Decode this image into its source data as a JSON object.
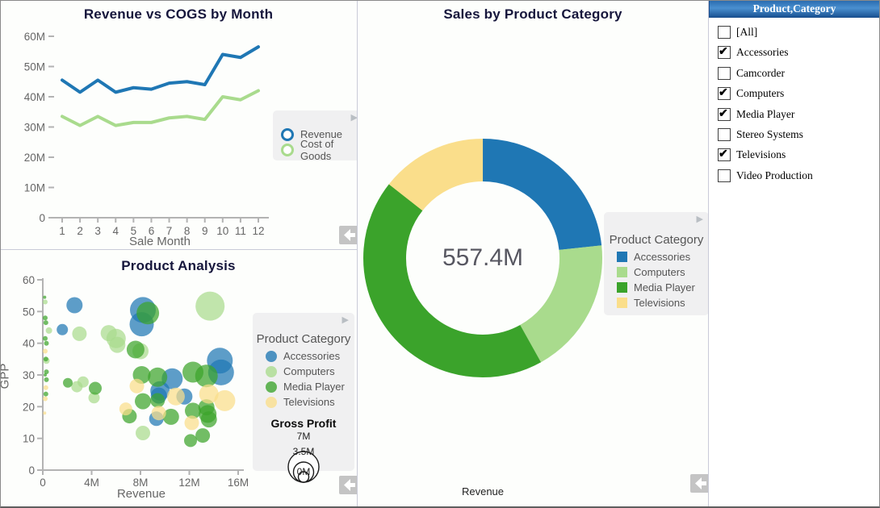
{
  "chart_data": [
    {
      "id": "revenue_vs_cogs",
      "type": "line",
      "title": "Revenue vs COGS by Month",
      "xlabel": "Sale Month",
      "ylabel": "",
      "x": [
        1,
        2,
        3,
        4,
        5,
        6,
        7,
        8,
        9,
        10,
        11,
        12
      ],
      "series": [
        {
          "name": "Revenue",
          "color": "#1F77B4",
          "values": [
            45.5,
            41.5,
            45.5,
            41.5,
            43,
            42.5,
            44.5,
            45,
            44,
            54,
            53,
            56.5
          ]
        },
        {
          "name": "Cost of Goods",
          "color": "#A9DB8D",
          "values": [
            33.5,
            30.5,
            33.5,
            30.5,
            31.5,
            31.5,
            33,
            33.5,
            32.5,
            40,
            39,
            42
          ]
        }
      ],
      "y_ticks": [
        "0",
        "10M",
        "20M",
        "30M",
        "40M",
        "50M",
        "60M"
      ],
      "ylim": [
        0,
        60
      ],
      "unit": "M",
      "grid": false,
      "legend_position": "right"
    },
    {
      "id": "product_analysis",
      "type": "scatter",
      "title": "Product Analysis",
      "xlabel": "Revenue",
      "ylabel": "GPP",
      "xlim": [
        0,
        16
      ],
      "ylim": [
        0,
        60
      ],
      "x_ticks": [
        "0",
        "4M",
        "8M",
        "12M",
        "16M"
      ],
      "y_ticks": [
        "0",
        "10",
        "20",
        "30",
        "40",
        "50",
        "60"
      ],
      "legend_title": "Product Category",
      "size_legend": {
        "title": "Gross Profit",
        "labels": [
          "7M",
          "3.5M",
          "0M"
        ]
      },
      "categories": [
        {
          "name": "Accessories",
          "color": "#1F77B4"
        },
        {
          "name": "Computers",
          "color": "#A9DB8D"
        },
        {
          "name": "Media Player",
          "color": "#3BA32B"
        },
        {
          "name": "Televisions",
          "color": "#FADE8B"
        }
      ],
      "points": [
        {
          "cat": "Accessories",
          "x": 2.6,
          "y": 52,
          "r": 10
        },
        {
          "cat": "Accessories",
          "x": 1.6,
          "y": 44.3,
          "r": 7
        },
        {
          "cat": "Accessories",
          "x": 8.2,
          "y": 50.5,
          "r": 16
        },
        {
          "cat": "Accessories",
          "x": 8.1,
          "y": 46,
          "r": 15
        },
        {
          "cat": "Accessories",
          "x": 10.6,
          "y": 28.8,
          "r": 13
        },
        {
          "cat": "Accessories",
          "x": 14.5,
          "y": 34.5,
          "r": 16
        },
        {
          "cat": "Accessories",
          "x": 14.6,
          "y": 30.8,
          "r": 16
        },
        {
          "cat": "Accessories",
          "x": 9.6,
          "y": 25,
          "r": 12
        },
        {
          "cat": "Accessories",
          "x": 9.5,
          "y": 23.5,
          "r": 10
        },
        {
          "cat": "Accessories",
          "x": 11.6,
          "y": 23.2,
          "r": 10
        },
        {
          "cat": "Accessories",
          "x": 9.3,
          "y": 16.2,
          "r": 9
        },
        {
          "cat": "Computers",
          "x": 13.7,
          "y": 51.7,
          "r": 18
        },
        {
          "cat": "Computers",
          "x": 3.0,
          "y": 43,
          "r": 9
        },
        {
          "cat": "Computers",
          "x": 5.4,
          "y": 43.2,
          "r": 10
        },
        {
          "cat": "Computers",
          "x": 6.0,
          "y": 41.5,
          "r": 12
        },
        {
          "cat": "Computers",
          "x": 6.1,
          "y": 39.5,
          "r": 10
        },
        {
          "cat": "Computers",
          "x": 8.0,
          "y": 37.5,
          "r": 10
        },
        {
          "cat": "Computers",
          "x": 4.2,
          "y": 22.8,
          "r": 7
        },
        {
          "cat": "Computers",
          "x": 2.8,
          "y": 26.3,
          "r": 7
        },
        {
          "cat": "Computers",
          "x": 3.3,
          "y": 27.8,
          "r": 7
        },
        {
          "cat": "Computers",
          "x": 8.2,
          "y": 11.7,
          "r": 9
        },
        {
          "cat": "Computers",
          "x": 0.5,
          "y": 44,
          "r": 4
        },
        {
          "cat": "Computers",
          "x": 0.3,
          "y": 34.5,
          "r": 4
        },
        {
          "cat": "Computers",
          "x": 0.2,
          "y": 53,
          "r": 3
        },
        {
          "cat": "Media Player",
          "x": 8.6,
          "y": 49.5,
          "r": 14
        },
        {
          "cat": "Media Player",
          "x": 7.6,
          "y": 38,
          "r": 11
        },
        {
          "cat": "Media Player",
          "x": 8.1,
          "y": 30,
          "r": 11
        },
        {
          "cat": "Media Player",
          "x": 9.4,
          "y": 29.3,
          "r": 12
        },
        {
          "cat": "Media Player",
          "x": 12.3,
          "y": 30.9,
          "r": 13
        },
        {
          "cat": "Media Player",
          "x": 13.4,
          "y": 29.7,
          "r": 14
        },
        {
          "cat": "Media Player",
          "x": 8.2,
          "y": 21.7,
          "r": 10
        },
        {
          "cat": "Media Player",
          "x": 9.4,
          "y": 22,
          "r": 9
        },
        {
          "cat": "Media Player",
          "x": 7.1,
          "y": 17,
          "r": 9
        },
        {
          "cat": "Media Player",
          "x": 10.5,
          "y": 16.8,
          "r": 10
        },
        {
          "cat": "Media Player",
          "x": 12.3,
          "y": 18.7,
          "r": 10
        },
        {
          "cat": "Media Player",
          "x": 13.4,
          "y": 19.8,
          "r": 10
        },
        {
          "cat": "Media Player",
          "x": 13.5,
          "y": 17.7,
          "r": 11
        },
        {
          "cat": "Media Player",
          "x": 13.6,
          "y": 16,
          "r": 10
        },
        {
          "cat": "Media Player",
          "x": 12.1,
          "y": 9.3,
          "r": 8
        },
        {
          "cat": "Media Player",
          "x": 13.1,
          "y": 10.9,
          "r": 9
        },
        {
          "cat": "Media Player",
          "x": 2.05,
          "y": 27.5,
          "r": 6
        },
        {
          "cat": "Media Player",
          "x": 4.3,
          "y": 25.8,
          "r": 8
        },
        {
          "cat": "Media Player",
          "x": 0.15,
          "y": 54.5,
          "r": 2
        },
        {
          "cat": "Media Player",
          "x": 0.2,
          "y": 48,
          "r": 3
        },
        {
          "cat": "Media Player",
          "x": 0.25,
          "y": 46.5,
          "r": 3
        },
        {
          "cat": "Media Player",
          "x": 0.2,
          "y": 41.5,
          "r": 3
        },
        {
          "cat": "Media Player",
          "x": 0.3,
          "y": 40,
          "r": 3
        },
        {
          "cat": "Media Player",
          "x": 0.25,
          "y": 35,
          "r": 3
        },
        {
          "cat": "Media Player",
          "x": 0.3,
          "y": 31,
          "r": 3
        },
        {
          "cat": "Media Player",
          "x": 0.2,
          "y": 30,
          "r": 2
        },
        {
          "cat": "Media Player",
          "x": 0.3,
          "y": 28.5,
          "r": 3
        },
        {
          "cat": "Media Player",
          "x": 0.25,
          "y": 24,
          "r": 3
        },
        {
          "cat": "Televisions",
          "x": 7.7,
          "y": 26.5,
          "r": 9
        },
        {
          "cat": "Televisions",
          "x": 10.9,
          "y": 23.2,
          "r": 11
        },
        {
          "cat": "Televisions",
          "x": 13.6,
          "y": 24,
          "r": 12
        },
        {
          "cat": "Televisions",
          "x": 14.9,
          "y": 21.9,
          "r": 13
        },
        {
          "cat": "Televisions",
          "x": 9.5,
          "y": 18,
          "r": 9
        },
        {
          "cat": "Televisions",
          "x": 6.8,
          "y": 19.3,
          "r": 8
        },
        {
          "cat": "Televisions",
          "x": 12.2,
          "y": 14.9,
          "r": 9
        },
        {
          "cat": "Televisions",
          "x": 0.2,
          "y": 37.5,
          "r": 3
        },
        {
          "cat": "Televisions",
          "x": 0.25,
          "y": 26,
          "r": 3
        },
        {
          "cat": "Televisions",
          "x": 0.2,
          "y": 22.5,
          "r": 3
        },
        {
          "cat": "Televisions",
          "x": 0.15,
          "y": 18,
          "r": 2
        }
      ]
    },
    {
      "id": "sales_by_category",
      "type": "donut",
      "title": "Sales by Product Category",
      "center_label": "557.4M",
      "footer_label": "Revenue",
      "legend_title": "Product Category",
      "total": "557.4M",
      "slices": [
        {
          "name": "Accessories",
          "value": 129.9,
          "color": "#1F77B4"
        },
        {
          "name": "Computers",
          "value": 103.7,
          "color": "#A9DB8D"
        },
        {
          "name": "Media Player",
          "value": 243.6,
          "color": "#3BA32B"
        },
        {
          "name": "Televisions",
          "value": 80.2,
          "color": "#FADE8B"
        }
      ]
    }
  ],
  "filter_panel": {
    "title": "Product,Category",
    "items": [
      {
        "label": "[All]",
        "checked": false
      },
      {
        "label": "Accessories",
        "checked": true
      },
      {
        "label": "Camcorder",
        "checked": false
      },
      {
        "label": "Computers",
        "checked": true
      },
      {
        "label": "Media Player",
        "checked": true
      },
      {
        "label": "Stereo Systems",
        "checked": false
      },
      {
        "label": "Televisions",
        "checked": true
      },
      {
        "label": "Video Production",
        "checked": false
      }
    ]
  },
  "icons": {
    "legend_expand": "▶"
  },
  "colors": {
    "accessories": "#1F77B4",
    "computers": "#A9DB8D",
    "media_player": "#3BA32B",
    "televisions": "#FADE8B"
  }
}
